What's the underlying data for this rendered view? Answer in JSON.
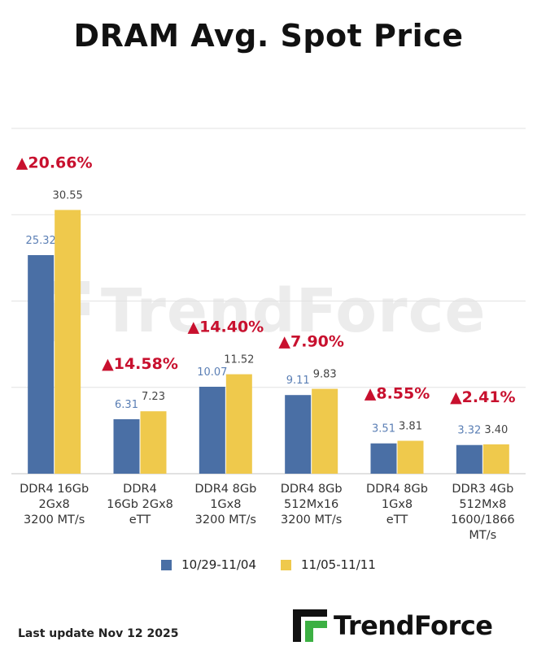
{
  "chart_data": {
    "type": "bar",
    "title": "DRAM Avg. Spot Price",
    "categories": [
      [
        "DDR4 16Gb",
        "2Gx8",
        "3200 MT/s"
      ],
      [
        "DDR4",
        "16Gb 2Gx8",
        "eTT"
      ],
      [
        "DDR4 8Gb",
        "1Gx8",
        "3200 MT/s"
      ],
      [
        "DDR4 8Gb",
        "512Mx16",
        "3200 MT/s"
      ],
      [
        "DDR4 8Gb",
        "1Gx8",
        "eTT"
      ],
      [
        "DDR3 4Gb",
        "512Mx8",
        "1600/1866",
        "MT/s"
      ]
    ],
    "series": [
      {
        "name": "10/29-11/04",
        "color": "#4A6FA5",
        "label_color": "#5B7FB5",
        "values": [
          25.32,
          6.31,
          10.07,
          9.11,
          3.51,
          3.32
        ]
      },
      {
        "name": "11/05-11/11",
        "color": "#EFC94C",
        "label_color": "#444444",
        "values": [
          30.55,
          7.23,
          11.52,
          9.83,
          3.81,
          3.4
        ]
      }
    ],
    "changes": [
      "▲20.66%",
      "▲14.58%",
      "▲14.40%",
      "▲7.90%",
      "▲8.55%",
      "▲2.41%"
    ],
    "change_color": "#C8102E",
    "ylim": [
      0,
      40
    ],
    "gridlines": [
      0,
      10,
      20,
      30,
      40
    ],
    "legend_position": "bottom",
    "xlabel": "",
    "ylabel": ""
  },
  "footer": {
    "last_update": "Last update Nov 12  2025",
    "brand": "TrendForce"
  }
}
